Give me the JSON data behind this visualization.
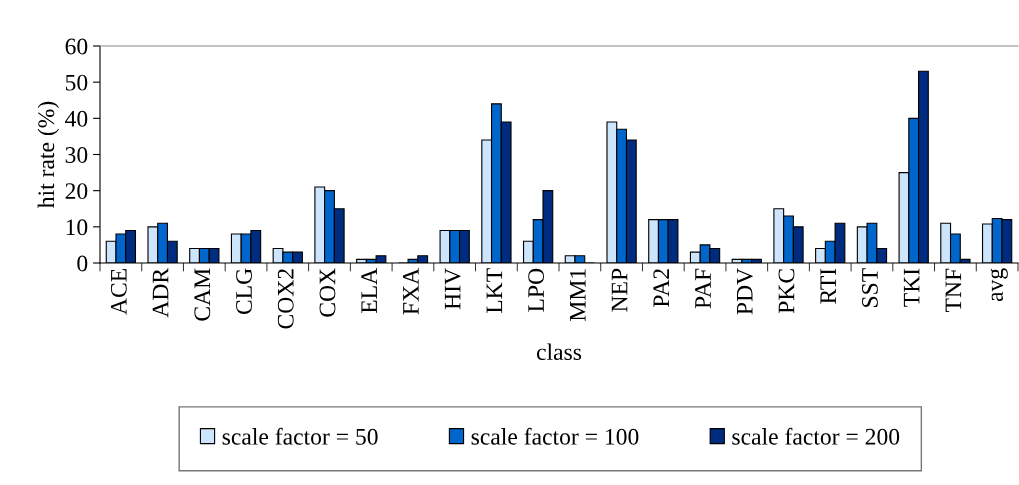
{
  "chart_data": {
    "type": "bar",
    "xlabel": "class",
    "ylabel": "hit rate (%)",
    "categories": [
      "ACE",
      "ADR",
      "CAM",
      "CLG",
      "COX2",
      "COX",
      "ELA",
      "FXA",
      "HIV",
      "LKT",
      "LPO",
      "MM1",
      "NEP",
      "PA2",
      "PAF",
      "PDV",
      "PKC",
      "RTI",
      "SST",
      "TKI",
      "TNF",
      "avg"
    ],
    "series": [
      {
        "name": "scale factor = 50",
        "color": "#cce4fc",
        "values": [
          6,
          10,
          4,
          8,
          4,
          21,
          1,
          0,
          9,
          34,
          6,
          2,
          39,
          12,
          3,
          1,
          15,
          4,
          10,
          25,
          11,
          10.8
        ]
      },
      {
        "name": "scale factor = 100",
        "color": "#0066cc",
        "values": [
          8,
          11,
          4,
          8,
          3,
          20,
          1,
          1,
          9,
          44,
          12,
          2,
          37,
          12,
          5,
          1,
          13,
          6,
          11,
          40,
          8,
          12.3
        ]
      },
      {
        "name": "scale factor = 200",
        "color": "#002c80",
        "values": [
          9,
          6,
          4,
          9,
          3,
          15,
          2,
          2,
          9,
          39,
          20,
          0,
          34,
          12,
          4,
          1,
          10,
          11,
          4,
          53,
          1,
          12
        ]
      }
    ],
    "ylim": [
      0,
      60
    ],
    "yticks": [
      0,
      10,
      20,
      30,
      40,
      50,
      60
    ],
    "grid": false,
    "legend": "bottom"
  }
}
